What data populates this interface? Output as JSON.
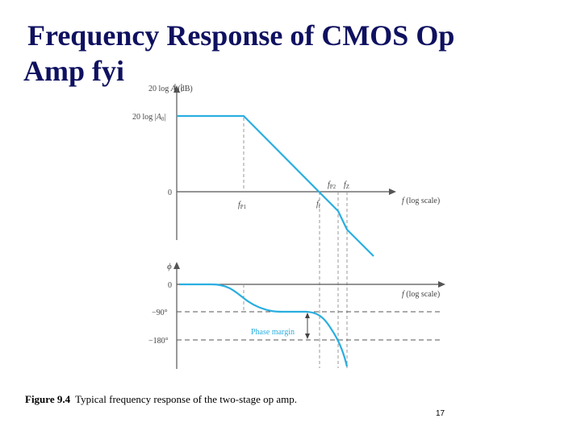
{
  "slide": {
    "title_line1": "Frequency Response of CMOS Op",
    "title_line2": "Amp fyi",
    "page_number": "17"
  },
  "figure": {
    "caption_label": "Figure 9.4",
    "caption_text": "Typical frequency response of the two-stage op amp.",
    "colors": {
      "curve": "#2aaee0",
      "axes": "#555555",
      "guides": "#9a9a9a",
      "annotation": "#2aaee0"
    },
    "magnitude_plot": {
      "y_axis_label": "20 log |A| (dB)",
      "x_axis_label": "f (log scale)",
      "y_ticks": [
        "20 log |A0|",
        "0"
      ],
      "frequency_labels": [
        "fP1",
        "ft",
        "fP2",
        "fZ"
      ]
    },
    "phase_plot": {
      "y_axis_label": "ϕ",
      "x_axis_label": "f (log scale)",
      "y_ticks": [
        "0",
        "−90°",
        "−180°"
      ],
      "annotation": "Phase margin"
    }
  }
}
